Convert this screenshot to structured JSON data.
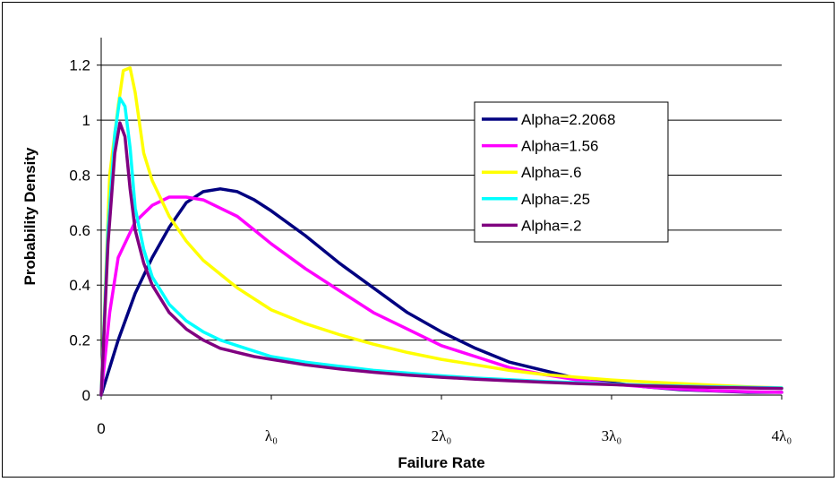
{
  "chart_data": {
    "type": "line",
    "title": "",
    "xlabel": "Failure Rate",
    "ylabel": "Probability Density",
    "xlim": [
      0,
      4
    ],
    "ylim": [
      0,
      1.3
    ],
    "x_ticks": [
      {
        "value": 0,
        "label": "0"
      },
      {
        "value": 1,
        "label": "λ₀"
      },
      {
        "value": 2,
        "label": "2λ₀"
      },
      {
        "value": 3,
        "label": "3λ₀"
      },
      {
        "value": 4,
        "label": "4λ₀"
      }
    ],
    "y_ticks": [
      {
        "value": 0,
        "label": "0"
      },
      {
        "value": 0.2,
        "label": "0.2"
      },
      {
        "value": 0.4,
        "label": "0.4"
      },
      {
        "value": 0.6,
        "label": "0.6"
      },
      {
        "value": 0.8,
        "label": "0.8"
      },
      {
        "value": 1.0,
        "label": "1"
      },
      {
        "value": 1.2,
        "label": "1.2"
      }
    ],
    "grid": "horizontal",
    "legend_position": "upper-right",
    "series": [
      {
        "name": "Alpha=2.2068",
        "color": "#000080",
        "points": [
          [
            0,
            0
          ],
          [
            0.1,
            0.2
          ],
          [
            0.2,
            0.37
          ],
          [
            0.3,
            0.5
          ],
          [
            0.4,
            0.61
          ],
          [
            0.5,
            0.7
          ],
          [
            0.6,
            0.74
          ],
          [
            0.7,
            0.75
          ],
          [
            0.8,
            0.74
          ],
          [
            0.9,
            0.71
          ],
          [
            1.0,
            0.67
          ],
          [
            1.2,
            0.58
          ],
          [
            1.4,
            0.48
          ],
          [
            1.6,
            0.39
          ],
          [
            1.8,
            0.3
          ],
          [
            2.0,
            0.23
          ],
          [
            2.2,
            0.17
          ],
          [
            2.4,
            0.12
          ],
          [
            2.6,
            0.09
          ],
          [
            2.8,
            0.06
          ],
          [
            3.0,
            0.045
          ],
          [
            3.2,
            0.03
          ],
          [
            3.4,
            0.02
          ],
          [
            3.6,
            0.015
          ],
          [
            3.8,
            0.01
          ],
          [
            4.0,
            0.01
          ]
        ]
      },
      {
        "name": "Alpha=1.56",
        "color": "#ff00ff",
        "points": [
          [
            0,
            0
          ],
          [
            0.05,
            0.3
          ],
          [
            0.1,
            0.5
          ],
          [
            0.2,
            0.63
          ],
          [
            0.3,
            0.69
          ],
          [
            0.4,
            0.72
          ],
          [
            0.5,
            0.72
          ],
          [
            0.6,
            0.71
          ],
          [
            0.7,
            0.68
          ],
          [
            0.8,
            0.65
          ],
          [
            0.9,
            0.6
          ],
          [
            1.0,
            0.55
          ],
          [
            1.2,
            0.46
          ],
          [
            1.4,
            0.38
          ],
          [
            1.6,
            0.3
          ],
          [
            1.8,
            0.24
          ],
          [
            2.0,
            0.18
          ],
          [
            2.2,
            0.14
          ],
          [
            2.4,
            0.1
          ],
          [
            2.6,
            0.075
          ],
          [
            2.8,
            0.055
          ],
          [
            3.0,
            0.04
          ],
          [
            3.2,
            0.03
          ],
          [
            3.4,
            0.022
          ],
          [
            3.6,
            0.016
          ],
          [
            3.8,
            0.012
          ],
          [
            4.0,
            0.01
          ]
        ]
      },
      {
        "name": "Alpha=.6",
        "color": "#ffff00",
        "points": [
          [
            0,
            0
          ],
          [
            0.05,
            0.8
          ],
          [
            0.1,
            1.05
          ],
          [
            0.13,
            1.18
          ],
          [
            0.17,
            1.19
          ],
          [
            0.2,
            1.1
          ],
          [
            0.25,
            0.88
          ],
          [
            0.3,
            0.78
          ],
          [
            0.4,
            0.65
          ],
          [
            0.5,
            0.56
          ],
          [
            0.6,
            0.49
          ],
          [
            0.7,
            0.44
          ],
          [
            0.8,
            0.39
          ],
          [
            0.9,
            0.35
          ],
          [
            1.0,
            0.31
          ],
          [
            1.2,
            0.26
          ],
          [
            1.4,
            0.22
          ],
          [
            1.6,
            0.185
          ],
          [
            1.8,
            0.155
          ],
          [
            2.0,
            0.13
          ],
          [
            2.2,
            0.11
          ],
          [
            2.4,
            0.09
          ],
          [
            2.6,
            0.075
          ],
          [
            2.8,
            0.065
          ],
          [
            3.0,
            0.055
          ],
          [
            3.2,
            0.048
          ],
          [
            3.4,
            0.042
          ],
          [
            3.6,
            0.036
          ],
          [
            3.8,
            0.03
          ],
          [
            4.0,
            0.026
          ]
        ]
      },
      {
        "name": "Alpha=.25",
        "color": "#00ffff",
        "points": [
          [
            0,
            0
          ],
          [
            0.04,
            0.6
          ],
          [
            0.08,
            0.95
          ],
          [
            0.11,
            1.08
          ],
          [
            0.14,
            1.05
          ],
          [
            0.17,
            0.9
          ],
          [
            0.2,
            0.68
          ],
          [
            0.25,
            0.53
          ],
          [
            0.3,
            0.43
          ],
          [
            0.4,
            0.33
          ],
          [
            0.5,
            0.27
          ],
          [
            0.6,
            0.23
          ],
          [
            0.7,
            0.2
          ],
          [
            0.8,
            0.18
          ],
          [
            0.9,
            0.16
          ],
          [
            1.0,
            0.14
          ],
          [
            1.2,
            0.12
          ],
          [
            1.4,
            0.105
          ],
          [
            1.6,
            0.09
          ],
          [
            1.8,
            0.08
          ],
          [
            2.0,
            0.07
          ],
          [
            2.2,
            0.062
          ],
          [
            2.4,
            0.056
          ],
          [
            2.6,
            0.05
          ],
          [
            2.8,
            0.045
          ],
          [
            3.0,
            0.04
          ],
          [
            3.2,
            0.036
          ],
          [
            3.4,
            0.033
          ],
          [
            3.6,
            0.03
          ],
          [
            3.8,
            0.028
          ],
          [
            4.0,
            0.026
          ]
        ]
      },
      {
        "name": "Alpha=.2",
        "color": "#800080",
        "points": [
          [
            0,
            0
          ],
          [
            0.04,
            0.55
          ],
          [
            0.08,
            0.88
          ],
          [
            0.11,
            0.99
          ],
          [
            0.14,
            0.94
          ],
          [
            0.17,
            0.75
          ],
          [
            0.2,
            0.6
          ],
          [
            0.25,
            0.48
          ],
          [
            0.3,
            0.4
          ],
          [
            0.4,
            0.3
          ],
          [
            0.5,
            0.24
          ],
          [
            0.6,
            0.2
          ],
          [
            0.7,
            0.17
          ],
          [
            0.8,
            0.155
          ],
          [
            0.9,
            0.14
          ],
          [
            1.0,
            0.13
          ],
          [
            1.2,
            0.11
          ],
          [
            1.4,
            0.095
          ],
          [
            1.6,
            0.083
          ],
          [
            1.8,
            0.073
          ],
          [
            2.0,
            0.065
          ],
          [
            2.2,
            0.058
          ],
          [
            2.4,
            0.052
          ],
          [
            2.6,
            0.047
          ],
          [
            2.8,
            0.042
          ],
          [
            3.0,
            0.038
          ],
          [
            3.2,
            0.034
          ],
          [
            3.4,
            0.031
          ],
          [
            3.6,
            0.028
          ],
          [
            3.8,
            0.026
          ],
          [
            4.0,
            0.024
          ]
        ]
      }
    ]
  }
}
